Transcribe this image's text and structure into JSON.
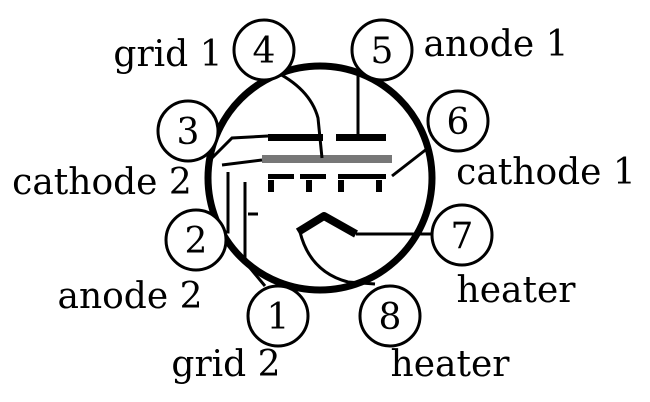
{
  "diagram": {
    "pins": [
      {
        "id": "pin-1",
        "number": "1",
        "label": "grid 2"
      },
      {
        "id": "pin-2",
        "number": "2",
        "label": "anode 2"
      },
      {
        "id": "pin-3",
        "number": "3",
        "label": "cathode 2"
      },
      {
        "id": "pin-4",
        "number": "4",
        "label": "grid 1"
      },
      {
        "id": "pin-5",
        "number": "5",
        "label": "anode 1"
      },
      {
        "id": "pin-6",
        "number": "6",
        "label": "cathode 1"
      },
      {
        "id": "pin-7",
        "number": "7",
        "label": "heater"
      },
      {
        "id": "pin-8",
        "number": "8",
        "label": "heater"
      }
    ]
  }
}
